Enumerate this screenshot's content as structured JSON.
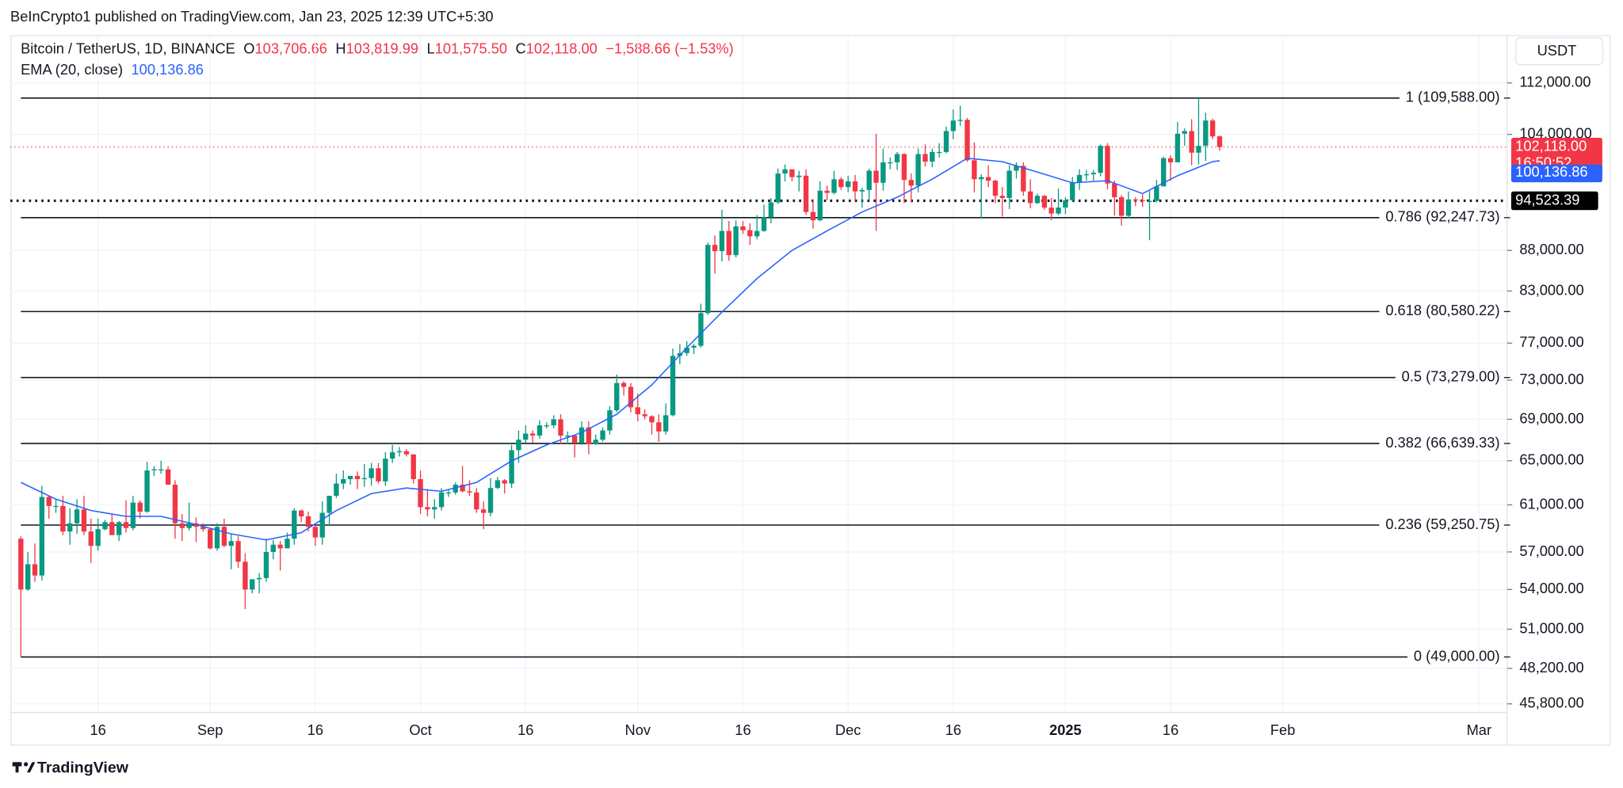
{
  "header": {
    "published": "BeInCrypto1 published on TradingView.com, Jan 23, 2025 12:39 UTC+5:30",
    "footer": "TradingView"
  },
  "chart_data": {
    "type": "candlestick",
    "symbol": "Bitcoin / TetherUS, 1D, BINANCE",
    "ohlc_header": [
      {
        "label": "O",
        "value": "103,706.66"
      },
      {
        "label": "H",
        "value": "103,819.99"
      },
      {
        "label": "L",
        "value": "101,575.50"
      },
      {
        "label": "C",
        "value": "102,118.00"
      }
    ],
    "change": "−1,588.66 (−1.53%)",
    "currency": "USDT",
    "up_color": "#089981",
    "down_color": "#f23645",
    "log_scale": true,
    "grid": true,
    "ylim": [
      45300,
      119800
    ],
    "yticks": [
      {
        "value": 112000,
        "label": "112,000.00"
      },
      {
        "value": 104000,
        "label": "104,000.00"
      },
      {
        "value": 88000,
        "label": "88,000.00"
      },
      {
        "value": 83000,
        "label": "83,000.00"
      },
      {
        "value": 77000,
        "label": "77,000.00"
      },
      {
        "value": 73000,
        "label": "73,000.00"
      },
      {
        "value": 69000,
        "label": "69,000.00"
      },
      {
        "value": 65000,
        "label": "65,000.00"
      },
      {
        "value": 61000,
        "label": "61,000.00"
      },
      {
        "value": 57000,
        "label": "57,000.00"
      },
      {
        "value": 54000,
        "label": "54,000.00"
      },
      {
        "value": 51000,
        "label": "51,000.00"
      },
      {
        "value": 48200,
        "label": "48,200.00"
      },
      {
        "value": 45800,
        "label": "45,800.00"
      }
    ],
    "xlim": [
      -1.5,
      212
    ],
    "xticks": [
      {
        "value": 11,
        "label": "16"
      },
      {
        "value": 27,
        "label": "Sep"
      },
      {
        "value": 42,
        "label": "16"
      },
      {
        "value": 57,
        "label": "Oct"
      },
      {
        "value": 72,
        "label": "16"
      },
      {
        "value": 88,
        "label": "Nov"
      },
      {
        "value": 103,
        "label": "16"
      },
      {
        "value": 118,
        "label": "Dec"
      },
      {
        "value": 133,
        "label": "16"
      },
      {
        "value": 149,
        "label": "2025"
      },
      {
        "value": 164,
        "label": "16"
      },
      {
        "value": 180,
        "label": "Feb"
      },
      {
        "value": 208,
        "label": "Mar"
      }
    ],
    "ohlc": [
      [
        58100,
        58300,
        49000,
        54000
      ],
      [
        54000,
        57000,
        53900,
        56000
      ],
      [
        56000,
        57700,
        54600,
        55100
      ],
      [
        55100,
        62700,
        54700,
        61700
      ],
      [
        61700,
        61800,
        59800,
        60900
      ],
      [
        60900,
        61500,
        60300,
        60900
      ],
      [
        60900,
        61800,
        58400,
        58700
      ],
      [
        58700,
        60700,
        57600,
        59400
      ],
      [
        59400,
        61500,
        58500,
        60600
      ],
      [
        60600,
        61800,
        58400,
        58700
      ],
      [
        58700,
        59800,
        56100,
        57500
      ],
      [
        57500,
        59800,
        57100,
        58900
      ],
      [
        58900,
        59700,
        58800,
        59500
      ],
      [
        59500,
        60200,
        58400,
        58400
      ],
      [
        58400,
        59600,
        57900,
        59500
      ],
      [
        59500,
        61400,
        58600,
        59000
      ],
      [
        59000,
        61800,
        58800,
        61200
      ],
      [
        61200,
        61400,
        59800,
        60400
      ],
      [
        60400,
        64900,
        60300,
        64100
      ],
      [
        64100,
        64500,
        63600,
        64200
      ],
      [
        64200,
        65000,
        63800,
        64200
      ],
      [
        64200,
        64500,
        62800,
        62800
      ],
      [
        62800,
        63200,
        58100,
        59400
      ],
      [
        59400,
        60200,
        57900,
        59000
      ],
      [
        59000,
        61200,
        58800,
        59400
      ],
      [
        59400,
        59900,
        57800,
        59100
      ],
      [
        59100,
        59400,
        58700,
        58900
      ],
      [
        58900,
        59000,
        57200,
        57300
      ],
      [
        57300,
        59400,
        57100,
        59100
      ],
      [
        59100,
        59800,
        57400,
        57500
      ],
      [
        57500,
        58500,
        55600,
        57900
      ],
      [
        57900,
        58300,
        55700,
        56200
      ],
      [
        56200,
        56900,
        52500,
        54000
      ],
      [
        54000,
        54800,
        53700,
        54800
      ],
      [
        54800,
        55300,
        53700,
        54900
      ],
      [
        54900,
        58100,
        54600,
        57000
      ],
      [
        57000,
        58000,
        56400,
        57600
      ],
      [
        57600,
        57900,
        55500,
        57300
      ],
      [
        57300,
        58600,
        57300,
        58100
      ],
      [
        58100,
        60700,
        57600,
        60500
      ],
      [
        60500,
        60600,
        59500,
        60000
      ],
      [
        60000,
        60400,
        58700,
        59100
      ],
      [
        59100,
        59200,
        57500,
        58200
      ],
      [
        58200,
        61300,
        57600,
        60300
      ],
      [
        60300,
        61800,
        59200,
        61800
      ],
      [
        61800,
        63800,
        61600,
        62900
      ],
      [
        62900,
        64100,
        62400,
        63300
      ],
      [
        63300,
        63600,
        62800,
        63600
      ],
      [
        63600,
        64000,
        62400,
        63300
      ],
      [
        63300,
        64700,
        62600,
        63400
      ],
      [
        63400,
        64800,
        62700,
        64300
      ],
      [
        64300,
        64800,
        62900,
        63100
      ],
      [
        63100,
        65800,
        62700,
        65200
      ],
      [
        65200,
        66500,
        64800,
        65800
      ],
      [
        65800,
        66300,
        65400,
        65900
      ],
      [
        65900,
        66100,
        65400,
        65600
      ],
      [
        65600,
        65600,
        62900,
        63300
      ],
      [
        63300,
        64100,
        60200,
        60800
      ],
      [
        60800,
        62400,
        60000,
        60600
      ],
      [
        60600,
        61500,
        59800,
        60800
      ],
      [
        60800,
        62500,
        60500,
        62100
      ],
      [
        62100,
        62400,
        61700,
        62100
      ],
      [
        62100,
        63000,
        61900,
        62800
      ],
      [
        62800,
        64500,
        62100,
        62200
      ],
      [
        62200,
        63200,
        61800,
        62100
      ],
      [
        62100,
        62500,
        60300,
        60600
      ],
      [
        60600,
        61300,
        58900,
        60300
      ],
      [
        60300,
        63400,
        60000,
        62500
      ],
      [
        62500,
        63500,
        62400,
        63200
      ],
      [
        63200,
        63300,
        62000,
        62900
      ],
      [
        62900,
        66500,
        62500,
        66000
      ],
      [
        66000,
        67900,
        64800,
        67000
      ],
      [
        67000,
        68400,
        66700,
        67600
      ],
      [
        67600,
        67900,
        66700,
        67400
      ],
      [
        67400,
        68900,
        67100,
        68400
      ],
      [
        68400,
        68700,
        68100,
        68400
      ],
      [
        68400,
        69400,
        68100,
        69000
      ],
      [
        69000,
        69500,
        66600,
        67400
      ],
      [
        67400,
        67800,
        66600,
        67400
      ],
      [
        67400,
        67500,
        65300,
        66700
      ],
      [
        66700,
        68800,
        66500,
        68200
      ],
      [
        68200,
        68800,
        65600,
        66600
      ],
      [
        66600,
        67500,
        66500,
        67000
      ],
      [
        67000,
        68200,
        66800,
        67900
      ],
      [
        67900,
        70300,
        67500,
        69900
      ],
      [
        69900,
        73600,
        69700,
        72700
      ],
      [
        72700,
        72900,
        71400,
        72300
      ],
      [
        72300,
        72700,
        69700,
        70200
      ],
      [
        70200,
        71600,
        68800,
        69500
      ],
      [
        69500,
        70000,
        69000,
        69300
      ],
      [
        69300,
        69400,
        67500,
        68700
      ],
      [
        68700,
        69500,
        66800,
        67800
      ],
      [
        67800,
        70600,
        67500,
        69400
      ],
      [
        69400,
        76400,
        69300,
        75600
      ],
      [
        75600,
        76900,
        74700,
        75900
      ],
      [
        75900,
        77200,
        75600,
        76500
      ],
      [
        76500,
        76900,
        75800,
        76700
      ],
      [
        76700,
        81500,
        76500,
        80400
      ],
      [
        80400,
        89000,
        80200,
        88700
      ],
      [
        88700,
        89900,
        85100,
        87900
      ],
      [
        87900,
        93300,
        86600,
        90500
      ],
      [
        90500,
        91800,
        86700,
        87400
      ],
      [
        87400,
        91900,
        87100,
        91100
      ],
      [
        91100,
        91800,
        90100,
        90600
      ],
      [
        90600,
        91500,
        88700,
        89800
      ],
      [
        89800,
        92600,
        89400,
        90500
      ],
      [
        90500,
        94000,
        90400,
        92300
      ],
      [
        92300,
        94900,
        91500,
        94300
      ],
      [
        94300,
        99000,
        94100,
        98300
      ],
      [
        98300,
        99600,
        97200,
        98900
      ],
      [
        98900,
        98900,
        97200,
        97800
      ],
      [
        97800,
        98700,
        95800,
        98000
      ],
      [
        98000,
        98900,
        92600,
        93000
      ],
      [
        93000,
        94700,
        90800,
        91900
      ],
      [
        91900,
        97200,
        91800,
        95900
      ],
      [
        95900,
        96600,
        94600,
        95600
      ],
      [
        95600,
        98700,
        95400,
        97500
      ],
      [
        97500,
        97800,
        96000,
        96400
      ],
      [
        96400,
        98000,
        95700,
        97200
      ],
      [
        97200,
        98100,
        94500,
        95800
      ],
      [
        95800,
        96300,
        93600,
        96000
      ],
      [
        96000,
        99000,
        94600,
        98700
      ],
      [
        98700,
        104100,
        90500,
        97000
      ],
      [
        97000,
        101900,
        95900,
        99900
      ],
      [
        99900,
        100600,
        98900,
        99900
      ],
      [
        99900,
        101400,
        98800,
        101100
      ],
      [
        101100,
        101200,
        94200,
        97400
      ],
      [
        97400,
        98300,
        94300,
        96600
      ],
      [
        96600,
        101900,
        95700,
        101100
      ],
      [
        101100,
        102500,
        99300,
        100000
      ],
      [
        100000,
        101900,
        99200,
        101400
      ],
      [
        101400,
        102700,
        100600,
        101400
      ],
      [
        101400,
        105200,
        101200,
        104500
      ],
      [
        104500,
        107800,
        103300,
        106100
      ],
      [
        106100,
        108400,
        105300,
        106200
      ],
      [
        106200,
        106500,
        100000,
        100200
      ],
      [
        100200,
        102800,
        95700,
        97500
      ],
      [
        97500,
        98200,
        92200,
        97800
      ],
      [
        97800,
        99500,
        96400,
        97300
      ],
      [
        97300,
        97400,
        94200,
        95200
      ],
      [
        95200,
        96400,
        92400,
        94900
      ],
      [
        94900,
        99500,
        93400,
        98700
      ],
      [
        98700,
        99900,
        97600,
        99400
      ],
      [
        99400,
        99900,
        95200,
        95800
      ],
      [
        95800,
        97500,
        93500,
        94200
      ],
      [
        94200,
        95500,
        94100,
        95200
      ],
      [
        95200,
        95300,
        93300,
        93600
      ],
      [
        93600,
        94900,
        91900,
        92800
      ],
      [
        92800,
        96200,
        92600,
        93600
      ],
      [
        93600,
        95000,
        92700,
        94600
      ],
      [
        94600,
        97800,
        94400,
        97000
      ],
      [
        97000,
        98900,
        96000,
        98100
      ],
      [
        98100,
        98800,
        97300,
        98200
      ],
      [
        98200,
        98800,
        97300,
        98400
      ],
      [
        98400,
        102500,
        97900,
        102300
      ],
      [
        102300,
        102700,
        96100,
        96900
      ],
      [
        96900,
        97300,
        92500,
        95000
      ],
      [
        95000,
        95300,
        91200,
        92500
      ],
      [
        92500,
        95800,
        92200,
        94700
      ],
      [
        94700,
        95000,
        93800,
        94600
      ],
      [
        94600,
        95400,
        93700,
        94500
      ],
      [
        94500,
        95900,
        89300,
        94500
      ],
      [
        94500,
        97400,
        94300,
        96500
      ],
      [
        96500,
        100700,
        96500,
        100500
      ],
      [
        100500,
        100900,
        97300,
        99900
      ],
      [
        99900,
        105900,
        99900,
        104100
      ],
      [
        104100,
        104900,
        102300,
        104500
      ],
      [
        104500,
        106300,
        99500,
        101300
      ],
      [
        101300,
        109600,
        99600,
        102300
      ],
      [
        102300,
        107300,
        100100,
        106100
      ],
      [
        106100,
        106400,
        103300,
        103700
      ],
      [
        103706.66,
        103819.99,
        101575.5,
        102118
      ]
    ],
    "ema": {
      "name": "EMA (20, close)",
      "color": "#2962ff",
      "value_label": "100,136.86",
      "x": [
        0,
        5,
        10,
        15,
        20,
        25,
        30,
        35,
        40,
        45,
        50,
        55,
        60,
        65,
        70,
        75,
        80,
        85,
        90,
        95,
        100,
        105,
        110,
        115,
        120,
        125,
        130,
        135,
        140,
        145,
        150,
        155,
        160,
        165,
        170,
        171
      ],
      "values": [
        63000,
        61500,
        60500,
        60000,
        60000,
        59300,
        58500,
        58000,
        58600,
        60500,
        62000,
        62500,
        62200,
        63000,
        65000,
        66500,
        67700,
        69500,
        72500,
        76500,
        80500,
        84500,
        88000,
        90500,
        93000,
        95000,
        97500,
        100500,
        100000,
        98500,
        97000,
        97300,
        95500,
        98000,
        100000,
        100136.86
      ]
    },
    "last_price": {
      "value": 102118,
      "label": "102,118.00",
      "countdown": "16:50:52",
      "color": "#f23645"
    },
    "level": {
      "value": 94523.39,
      "label": "94,523.39"
    },
    "fib_levels": [
      {
        "value": 109588,
        "label": "1 (109,588.00)"
      },
      {
        "value": 92247.73,
        "label": "0.786 (92,247.73)"
      },
      {
        "value": 80580.22,
        "label": "0.618 (80,580.22)"
      },
      {
        "value": 73279,
        "label": "0.5 (73,279.00)"
      },
      {
        "value": 66639.33,
        "label": "0.382 (66,639.33)"
      },
      {
        "value": 59250.75,
        "label": "0.236 (59,250.75)"
      },
      {
        "value": 49000,
        "label": "0 (49,000.00)"
      }
    ]
  }
}
